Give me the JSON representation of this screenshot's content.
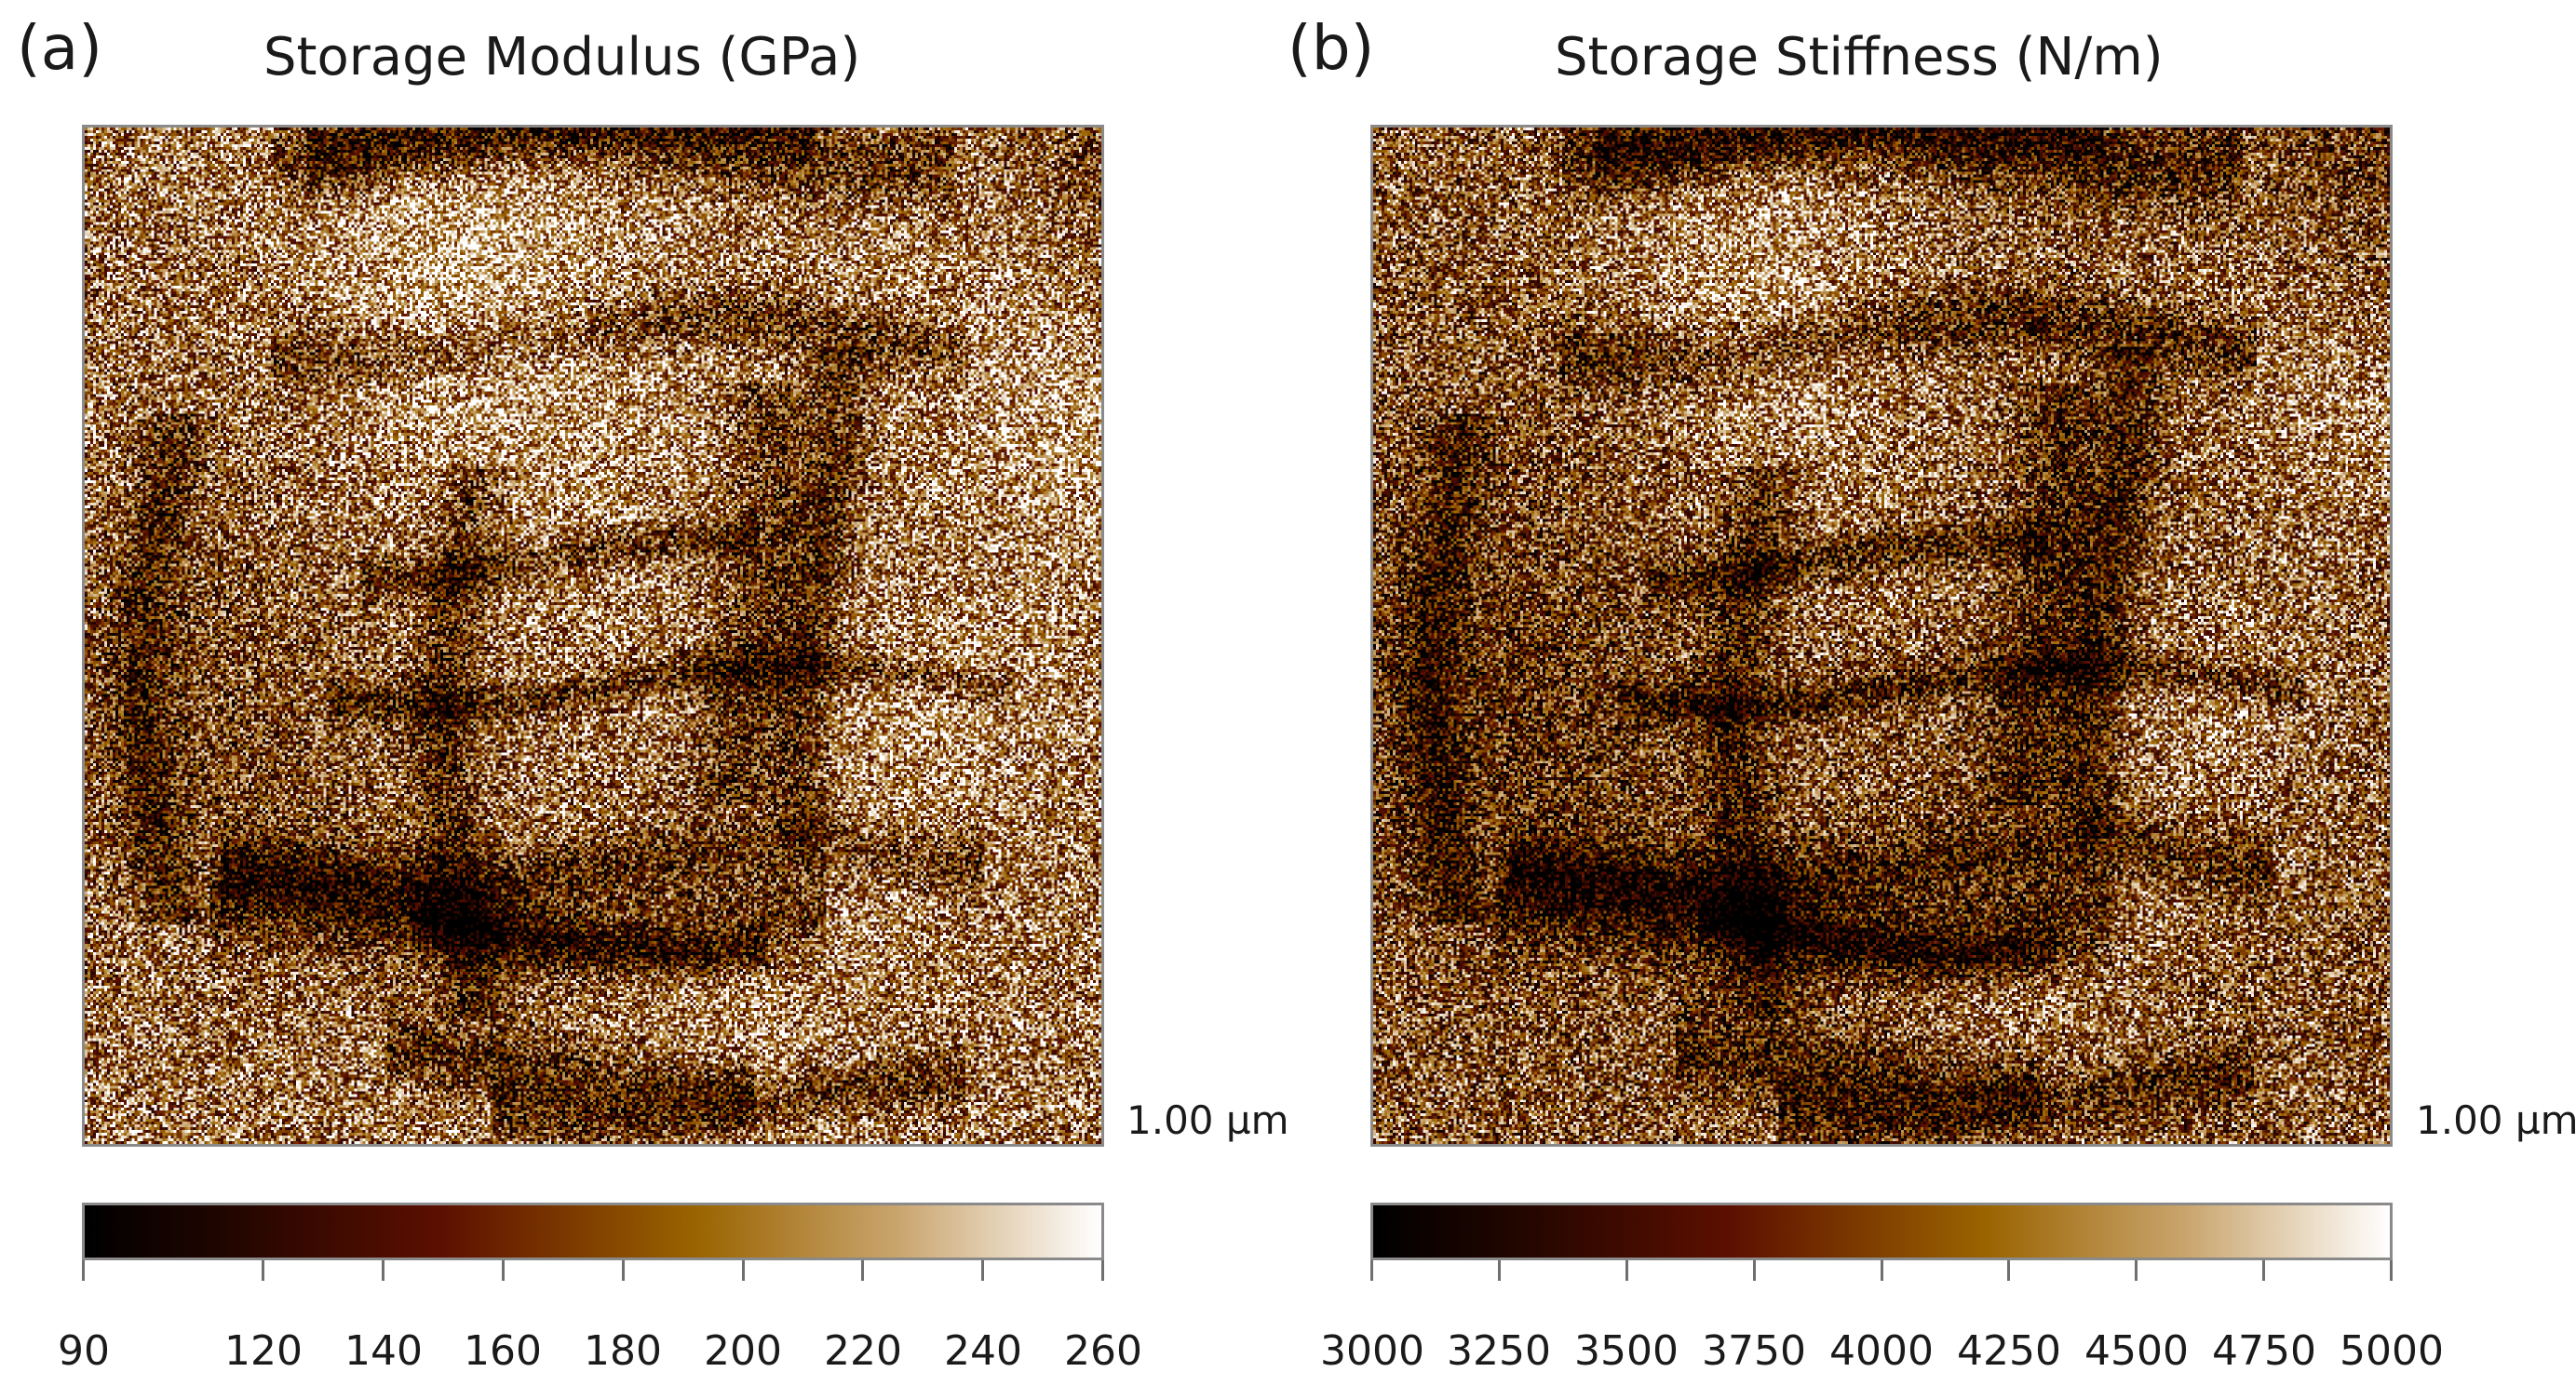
{
  "panels": [
    {
      "id": "a",
      "label": "(a)",
      "title": "Storage Modulus (GPa)",
      "scale_bar": "1.00 µm",
      "colorbar": {
        "min": 90,
        "max": 260,
        "ticks": [
          90,
          120,
          140,
          160,
          180,
          200,
          220,
          240,
          260
        ],
        "tick_labels": [
          "90",
          "120",
          "140",
          "160",
          "180",
          "200",
          "220",
          "240",
          "260"
        ]
      },
      "mean_level": 0.64
    },
    {
      "id": "b",
      "label": "(b)",
      "title": "Storage Stiffness (N/m)",
      "scale_bar": "1.00 µm",
      "colorbar": {
        "min": 3000,
        "max": 5000,
        "ticks": [
          3000,
          3250,
          3500,
          3750,
          4000,
          4250,
          4500,
          4750,
          5000
        ],
        "tick_labels": [
          "3000",
          "3250",
          "3500",
          "3750",
          "4000",
          "4250",
          "4500",
          "4750",
          "5000"
        ]
      },
      "mean_level": 0.54
    }
  ],
  "colormap": {
    "name": "afm-copper",
    "stops": [
      {
        "pos": 0.0,
        "color": "#000000"
      },
      {
        "pos": 0.15,
        "color": "#240600"
      },
      {
        "pos": 0.35,
        "color": "#5c0f00"
      },
      {
        "pos": 0.6,
        "color": "#9a6300"
      },
      {
        "pos": 0.8,
        "color": "#c9a56e"
      },
      {
        "pos": 1.0,
        "color": "#ffffff"
      }
    ]
  }
}
